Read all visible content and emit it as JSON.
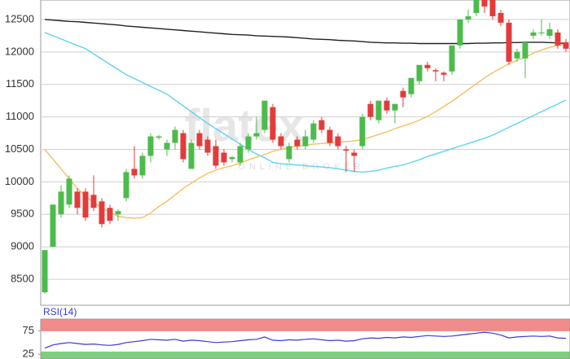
{
  "chart_data": [
    {
      "type": "candlestick",
      "watermark": {
        "brand": "flatex",
        "tagline": "ONLINE BROKER"
      },
      "up_color": "#4cbb4c",
      "down_color": "#e33b3b",
      "ylim": [
        8100,
        12800
      ],
      "yticks": [
        8500,
        9000,
        9500,
        10000,
        10500,
        11000,
        11500,
        12000,
        12500
      ],
      "grid": true,
      "open": [
        8300,
        9000,
        9500,
        9650,
        9850,
        9850,
        9800,
        9700,
        9600,
        9500,
        9750,
        10200,
        10100,
        10400,
        10680,
        10500,
        10600,
        10750,
        10200,
        10750,
        10650,
        10550,
        10450,
        10350,
        10300,
        10500,
        10700,
        10800,
        11150,
        10700,
        10350,
        10650,
        10550,
        10650,
        10950,
        10800,
        10700,
        10500,
        10450,
        10550,
        11200,
        10950,
        11250,
        11100,
        11400,
        11350,
        11550,
        11800,
        11720,
        11680,
        11700,
        12100,
        12500,
        12600,
        12800,
        12800,
        12600,
        12450,
        11900,
        11900,
        12250,
        12300,
        12250,
        12300,
        12150
      ],
      "high": [
        8950,
        9650,
        9950,
        10100,
        9900,
        9900,
        10100,
        9750,
        9650,
        9580,
        10200,
        10550,
        10450,
        10750,
        10720,
        10650,
        10850,
        10800,
        10650,
        10800,
        10700,
        10650,
        10500,
        10400,
        10600,
        10750,
        11000,
        11250,
        11200,
        10750,
        10600,
        10700,
        10800,
        10950,
        11000,
        10850,
        10750,
        10550,
        10500,
        11050,
        11250,
        11250,
        11300,
        11200,
        11450,
        11600,
        11800,
        11850,
        11750,
        11700,
        12100,
        12500,
        12650,
        12800,
        12800,
        12800,
        12650,
        12500,
        12050,
        12150,
        12350,
        12500,
        12450,
        12350,
        12200
      ],
      "low": [
        8280,
        9000,
        9450,
        9600,
        9500,
        9400,
        9550,
        9300,
        9350,
        9400,
        9700,
        10050,
        10050,
        10300,
        10650,
        10400,
        10500,
        10300,
        10200,
        10500,
        10400,
        10200,
        10250,
        10300,
        10250,
        10450,
        10650,
        10750,
        10600,
        10500,
        10300,
        10500,
        10500,
        10600,
        10750,
        10550,
        10500,
        10150,
        10150,
        10500,
        10950,
        10900,
        11050,
        10900,
        11150,
        11300,
        11500,
        11700,
        11550,
        11550,
        11650,
        12050,
        12450,
        12550,
        12600,
        12500,
        12400,
        11800,
        11850,
        11600,
        12200,
        12250,
        12200,
        12050,
        12000
      ],
      "close": [
        8950,
        9650,
        9850,
        10050,
        9600,
        9450,
        9600,
        9350,
        9400,
        9550,
        10150,
        10100,
        10400,
        10700,
        10700,
        10600,
        10800,
        10350,
        10600,
        10550,
        10450,
        10250,
        10300,
        10380,
        10550,
        10700,
        10750,
        11250,
        10650,
        10550,
        10550,
        10550,
        10700,
        10900,
        10800,
        10600,
        10550,
        10480,
        10400,
        11000,
        11000,
        11250,
        11100,
        11200,
        11300,
        11600,
        11800,
        11750,
        11700,
        11650,
        12100,
        12500,
        12550,
        12800,
        12700,
        12550,
        12450,
        11850,
        12000,
        12150,
        12300,
        12300,
        12350,
        12100,
        12050
      ],
      "lines": [
        {
          "color": "#222222",
          "values": [
            12500,
            12490,
            12480,
            12470,
            12465,
            12455,
            12445,
            12435,
            12425,
            12415,
            12400,
            12390,
            12380,
            12370,
            12360,
            12350,
            12340,
            12330,
            12320,
            12310,
            12300,
            12290,
            12280,
            12270,
            12265,
            12260,
            12250,
            12245,
            12240,
            12235,
            12230,
            12220,
            12210,
            12200,
            12195,
            12190,
            12180,
            12175,
            12170,
            12160,
            12150,
            12145,
            12140,
            12140,
            12135,
            12135,
            12130,
            12130,
            12130,
            12130,
            12130,
            12130,
            12130,
            12135,
            12135,
            12140,
            12140,
            12145,
            12145,
            12150,
            12150,
            12150,
            12145,
            12140,
            12130
          ]
        },
        {
          "color": "#5fd3f0",
          "values": [
            12300,
            12250,
            12200,
            12150,
            12100,
            12050,
            11970,
            11890,
            11810,
            11730,
            11650,
            11590,
            11530,
            11470,
            11410,
            11350,
            11260,
            11170,
            11080,
            10990,
            10900,
            10820,
            10740,
            10660,
            10580,
            10500,
            10430,
            10370,
            10300,
            10280,
            10270,
            10260,
            10250,
            10240,
            10230,
            10220,
            10200,
            10180,
            10160,
            10150,
            10160,
            10180,
            10210,
            10240,
            10260,
            10300,
            10340,
            10390,
            10430,
            10470,
            10510,
            10550,
            10590,
            10630,
            10670,
            10720,
            10780,
            10840,
            10900,
            10960,
            11020,
            11080,
            11140,
            11200,
            11260
          ]
        },
        {
          "color": "#f2c061",
          "values": [
            10500,
            10350,
            10200,
            10050,
            9900,
            9780,
            9680,
            9600,
            9530,
            9470,
            9450,
            9440,
            9450,
            9520,
            9620,
            9700,
            9800,
            9900,
            9980,
            10060,
            10130,
            10180,
            10220,
            10250,
            10290,
            10340,
            10380,
            10420,
            10470,
            10500,
            10530,
            10550,
            10560,
            10580,
            10590,
            10600,
            10610,
            10620,
            10630,
            10650,
            10690,
            10730,
            10770,
            10820,
            10860,
            10900,
            10950,
            11010,
            11080,
            11160,
            11240,
            11330,
            11420,
            11510,
            11600,
            11680,
            11750,
            11820,
            11870,
            11920,
            11980,
            12030,
            12070,
            12100,
            12120
          ]
        }
      ]
    },
    {
      "type": "line",
      "title": "RSI(14)",
      "ylim": [
        15,
        100
      ],
      "yticks": [
        25,
        75
      ],
      "zones": [
        {
          "from": 75,
          "to": 100,
          "color": "#f08c8c"
        },
        {
          "from": 15,
          "to": 30,
          "color": "#7ccf7c"
        }
      ],
      "series": [
        {
          "color": "#3a3ad8",
          "values": [
            38,
            45,
            48,
            50,
            48,
            46,
            47,
            45,
            44,
            46,
            50,
            52,
            54,
            57,
            56,
            55,
            57,
            53,
            55,
            54,
            52,
            50,
            51,
            52,
            54,
            56,
            57,
            62,
            55,
            54,
            56,
            55,
            57,
            58,
            56,
            54,
            55,
            53,
            54,
            58,
            60,
            59,
            61,
            60,
            62,
            61,
            63,
            65,
            64,
            63,
            64,
            66,
            68,
            70,
            72,
            70,
            66,
            60,
            62,
            63,
            64,
            63,
            64,
            60,
            59
          ]
        }
      ]
    }
  ]
}
